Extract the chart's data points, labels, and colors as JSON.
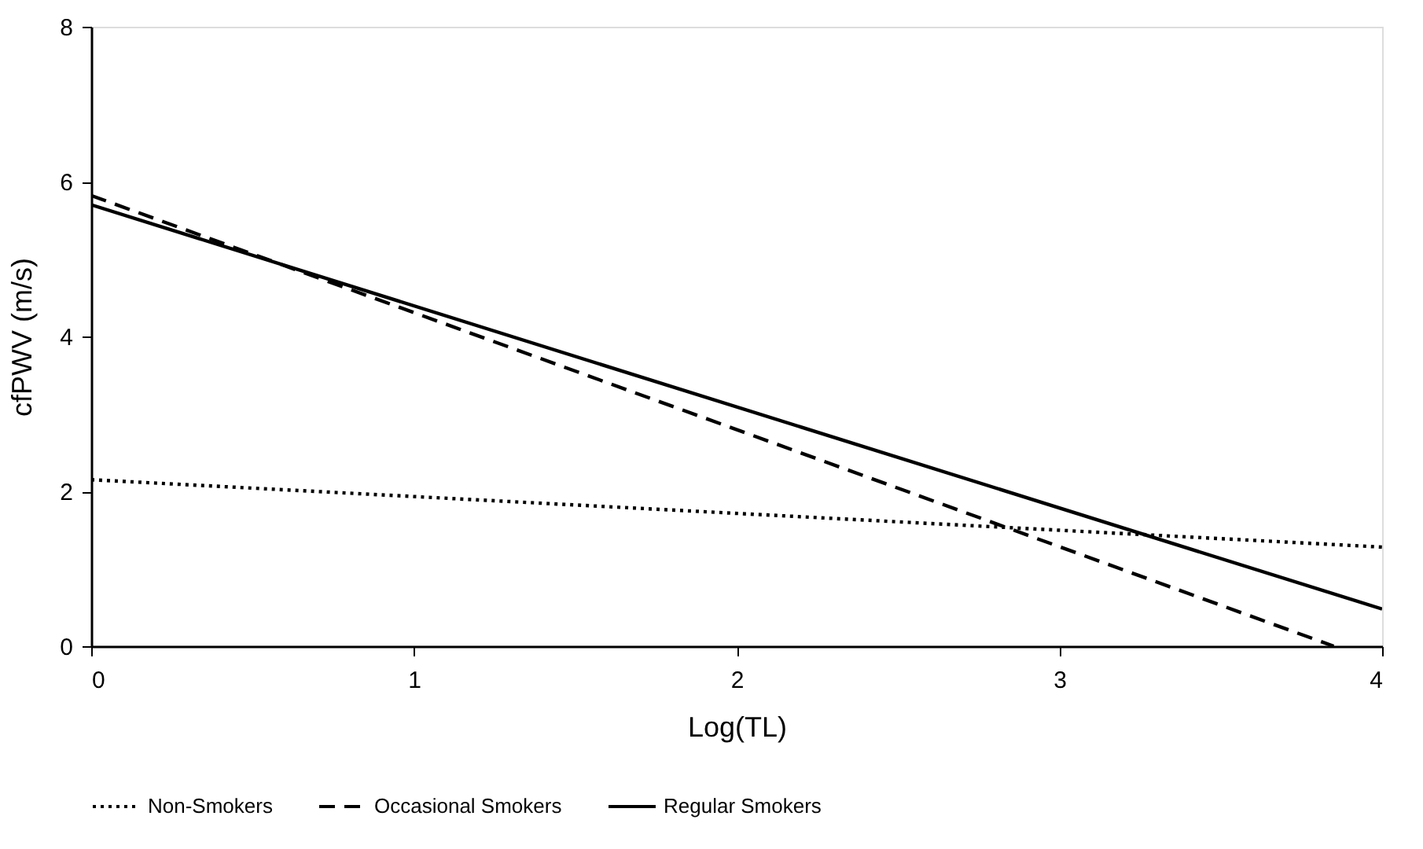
{
  "chart_data": {
    "type": "line",
    "xlabel": "Log(TL)",
    "ylabel": "cfPWV (m/s)",
    "xlim": [
      0,
      4
    ],
    "xticks": [
      0,
      1,
      2,
      3,
      4
    ],
    "ylim": [
      0,
      8
    ],
    "yticks": [
      0,
      2,
      4,
      6,
      8
    ],
    "grid": false,
    "legend": "bottom",
    "marker": "none",
    "series": [
      {
        "name": "Non-Smokers",
        "color": "#000000",
        "line_style": "dotted",
        "x": [
          0,
          4
        ],
        "values": [
          2.15,
          1.28
        ]
      },
      {
        "name": "Occasional Smokers",
        "color": "#000000",
        "line_style": "dashed",
        "x": [
          0,
          3.85
        ],
        "values": [
          5.82,
          0
        ]
      },
      {
        "name": "Regular Smokers",
        "color": "#000000",
        "line_style": "solid",
        "x": [
          0,
          4
        ],
        "values": [
          5.7,
          0.48
        ]
      }
    ]
  }
}
